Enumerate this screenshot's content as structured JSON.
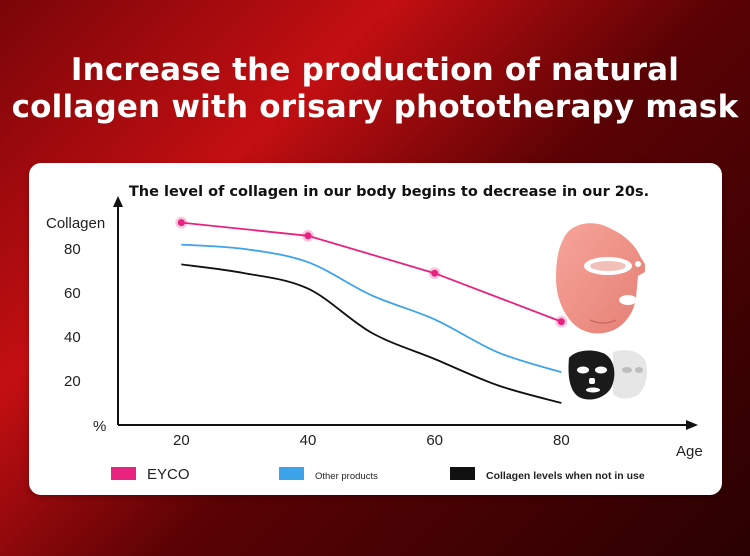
{
  "title_line1": "Increase the production of natural",
  "title_line2": "collagen with orisary phototherapy mask",
  "chart_data": {
    "type": "line",
    "title": "The level of collagen in our body begins to decrease in our 20s.",
    "ylabel": "Collagen",
    "xlabel": "Age",
    "y_unit_label": "%",
    "xlim": [
      10,
      100
    ],
    "ylim": [
      0,
      100
    ],
    "x_ticks": [
      20,
      40,
      60,
      80
    ],
    "y_ticks": [
      20,
      40,
      60,
      80
    ],
    "series": [
      {
        "name": "EYCO",
        "color": "#e8237f",
        "markers": true,
        "x": [
          20,
          40,
          60,
          80
        ],
        "y": [
          92,
          86,
          69,
          47
        ]
      },
      {
        "name": "Other products",
        "color": "#3da3ea",
        "markers": false,
        "x": [
          20,
          30,
          40,
          50,
          60,
          70,
          80
        ],
        "y": [
          82,
          80,
          74,
          59,
          48,
          33,
          24
        ]
      },
      {
        "name": "Collagen levels when not in use",
        "color": "#111111",
        "markers": false,
        "x": [
          20,
          30,
          40,
          50,
          60,
          70,
          80
        ],
        "y": [
          73,
          69,
          62,
          42,
          30,
          18,
          10
        ]
      }
    ]
  },
  "legend": [
    {
      "label": "EYCO",
      "color": "#e8237f"
    },
    {
      "label": "Other products",
      "color": "#3da3ea"
    },
    {
      "label": "Collagen levels when not in use",
      "color": "#111111"
    }
  ]
}
